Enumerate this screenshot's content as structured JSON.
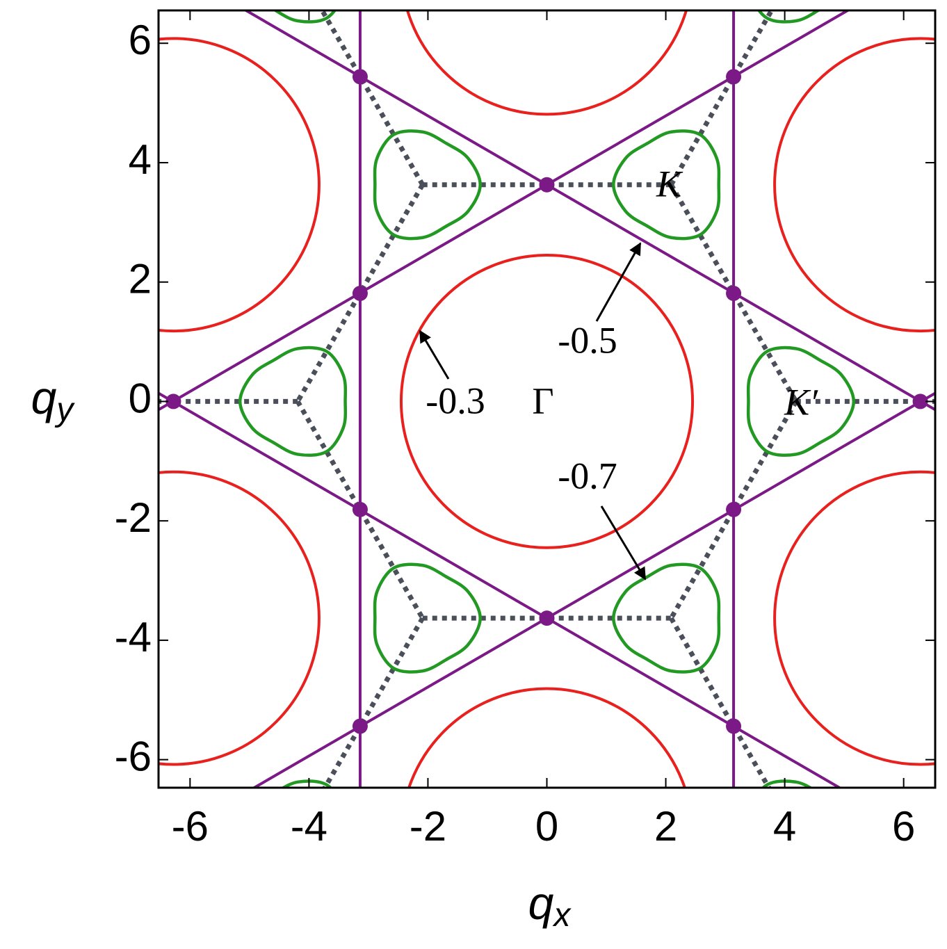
{
  "chart_data": {
    "type": "contour",
    "xlabel": "qx",
    "ylabel": "qy",
    "xlim": [
      -6.53,
      6.53
    ],
    "ylim": [
      -6.47,
      6.55
    ],
    "xticks": [
      -6,
      -4,
      -2,
      0,
      2,
      4,
      6
    ],
    "yticks": [
      -6,
      -4,
      -2,
      0,
      2,
      4,
      6
    ],
    "annotations": {
      "gamma": "Γ",
      "k": "K",
      "k_prime": "K′"
    },
    "contours": [
      {
        "level": -0.3,
        "color": "#e8211e",
        "radius": 2.45,
        "centers": [
          [
            0,
            0
          ],
          [
            -6.28,
            3.63
          ],
          [
            6.28,
            3.63
          ],
          [
            -6.28,
            -3.63
          ],
          [
            6.28,
            -3.63
          ],
          [
            0,
            7.26
          ],
          [
            0,
            -7.26
          ]
        ]
      },
      {
        "level": -0.5,
        "color": "#7b1a86",
        "lines": [
          [
            [
              -7,
              -0.41
            ],
            [
              7,
              7.67
            ]
          ],
          [
            [
              -7,
              7.67
            ],
            [
              7,
              -0.41
            ]
          ],
          [
            [
              -7,
              -7.67
            ],
            [
              7,
              0.41
            ]
          ],
          [
            [
              -7,
              0.41
            ],
            [
              7,
              -7.67
            ]
          ],
          [
            [
              -3.14,
              -7
            ],
            [
              -3.14,
              7
            ]
          ],
          [
            [
              3.14,
              -7
            ],
            [
              3.14,
              7
            ]
          ]
        ],
        "nodes": [
          [
            0,
            3.63
          ],
          [
            0,
            -3.63
          ],
          [
            -3.14,
            1.81
          ],
          [
            3.14,
            1.81
          ],
          [
            -3.14,
            -1.81
          ],
          [
            3.14,
            -1.81
          ],
          [
            -3.14,
            5.44
          ],
          [
            3.14,
            5.44
          ],
          [
            -3.14,
            -5.44
          ],
          [
            3.14,
            -5.44
          ],
          [
            -6.28,
            0
          ],
          [
            6.28,
            0
          ]
        ]
      },
      {
        "level": -0.7,
        "color": "#229922",
        "groups": [
          {
            "shape": {
              "x": [
                0.97,
                0.766,
                0.4,
                0,
                -0.485,
                -0.766,
                -0.8,
                -0.766,
                -0.485,
                0,
                0.4,
                0.766
              ],
              "y": [
                0,
                0.443,
                0.693,
                0.885,
                0.84,
                0.443,
                0,
                -0.443,
                -0.84,
                -0.885,
                -0.693,
                -0.443
              ]
            },
            "centers": [
              [
                4.19,
                0
              ],
              [
                -2.09,
                3.63
              ],
              [
                -2.09,
                -3.63
              ],
              [
                4.19,
                7.26
              ],
              [
                4.19,
                -7.26
              ]
            ]
          },
          {
            "shape": {
              "x": [
                -0.97,
                -0.766,
                -0.4,
                0,
                0.485,
                0.766,
                0.8,
                0.766,
                0.485,
                0,
                -0.4,
                -0.766
              ],
              "y": [
                0,
                0.443,
                0.693,
                0.885,
                0.84,
                0.443,
                0,
                -0.443,
                -0.84,
                -0.885,
                -0.693,
                -0.443
              ]
            },
            "centers": [
              [
                -4.19,
                0
              ],
              [
                2.09,
                3.63
              ],
              [
                2.09,
                -3.63
              ],
              [
                -4.19,
                7.26
              ],
              [
                -4.19,
                -7.26
              ]
            ]
          }
        ]
      }
    ],
    "zone_edges": {
      "color": "#4a4f5a",
      "segments": [
        [
          [
            -2.09,
            3.63
          ],
          [
            2.09,
            3.63
          ]
        ],
        [
          [
            -2.09,
            3.63
          ],
          [
            -4.19,
            7.26
          ]
        ],
        [
          [
            -2.09,
            3.63
          ],
          [
            -4.19,
            0
          ]
        ],
        [
          [
            2.09,
            3.63
          ],
          [
            4.19,
            7.26
          ]
        ],
        [
          [
            2.09,
            3.63
          ],
          [
            4.19,
            0
          ]
        ],
        [
          [
            -4.19,
            0
          ],
          [
            -8.38,
            0
          ]
        ],
        [
          [
            4.19,
            0
          ],
          [
            8.38,
            0
          ]
        ],
        [
          [
            -4.19,
            0
          ],
          [
            -2.09,
            -3.63
          ]
        ],
        [
          [
            4.19,
            0
          ],
          [
            2.09,
            -3.63
          ]
        ],
        [
          [
            -2.09,
            -3.63
          ],
          [
            2.09,
            -3.63
          ]
        ],
        [
          [
            -2.09,
            -3.63
          ],
          [
            -4.19,
            -7.26
          ]
        ],
        [
          [
            2.09,
            -3.63
          ],
          [
            4.19,
            -7.26
          ]
        ]
      ]
    }
  }
}
